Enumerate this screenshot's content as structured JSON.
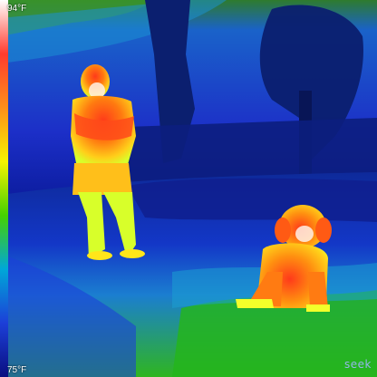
{
  "scale": {
    "max_label": "94°F",
    "min_label": "75°F",
    "palette": [
      "#ffffff",
      "#ff3b2e",
      "#ff8f1a",
      "#f6f300",
      "#45d100",
      "#00a7d8",
      "#1c3fd8",
      "#0a0f80"
    ]
  },
  "brand": {
    "text": "seek"
  },
  "colors": {
    "sky_cold": "#1c2fc8",
    "grass_green": "#2fb51f",
    "trees_dark": "#0b1f6f",
    "subject_hot": "#ff3a1a",
    "subject_warm": "#ffb21a",
    "subject_mid": "#d8ff2a"
  }
}
